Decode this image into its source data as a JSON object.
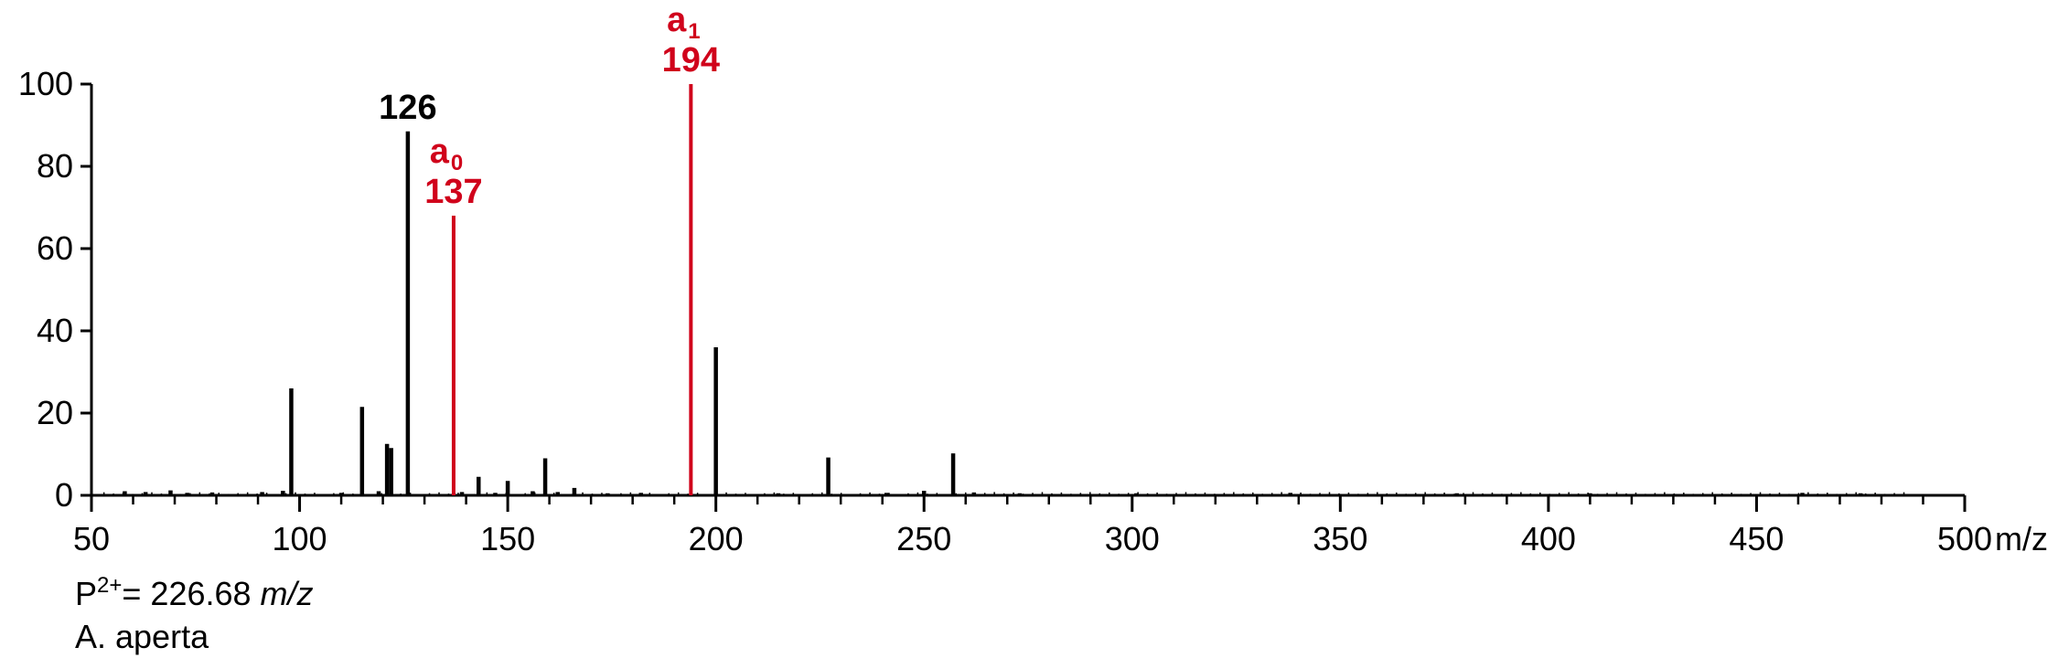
{
  "chart_data": {
    "type": "bar",
    "title": "",
    "xlabel": "m/z",
    "ylabel": "",
    "xlim": [
      50,
      500
    ],
    "ylim": [
      0,
      100
    ],
    "x_ticks": [
      50,
      100,
      150,
      200,
      250,
      300,
      350,
      400,
      450,
      500
    ],
    "y_ticks": [
      0,
      20,
      40,
      60,
      80,
      100
    ],
    "grid": false,
    "colors": {
      "default": "#000000",
      "highlight": "#d0021b"
    },
    "series": [
      {
        "values": [
          {
            "x": 58,
            "y": 1.0
          },
          {
            "x": 63,
            "y": 0.8
          },
          {
            "x": 69,
            "y": 1.2
          },
          {
            "x": 73,
            "y": 0.6
          },
          {
            "x": 79,
            "y": 0.7
          },
          {
            "x": 91,
            "y": 0.8
          },
          {
            "x": 96,
            "y": 1.1
          },
          {
            "x": 98,
            "y": 26
          },
          {
            "x": 110,
            "y": 0.6
          },
          {
            "x": 115,
            "y": 21.5
          },
          {
            "x": 119,
            "y": 1.0
          },
          {
            "x": 121,
            "y": 12.5
          },
          {
            "x": 122,
            "y": 11.5
          },
          {
            "x": 126,
            "y": 88.5,
            "label": "126"
          },
          {
            "x": 139,
            "y": 0.8
          },
          {
            "x": 143,
            "y": 4.5
          },
          {
            "x": 147,
            "y": 0.6
          },
          {
            "x": 150,
            "y": 3.5
          },
          {
            "x": 156,
            "y": 1.0
          },
          {
            "x": 159,
            "y": 9
          },
          {
            "x": 162,
            "y": 0.8
          },
          {
            "x": 166,
            "y": 1.8
          },
          {
            "x": 174,
            "y": 0.5
          },
          {
            "x": 182,
            "y": 0.6
          },
          {
            "x": 200,
            "y": 36
          },
          {
            "x": 215,
            "y": 0.5
          },
          {
            "x": 227,
            "y": 9.2
          },
          {
            "x": 241,
            "y": 0.6
          },
          {
            "x": 250,
            "y": 1.1
          },
          {
            "x": 257,
            "y": 10.2
          },
          {
            "x": 262,
            "y": 0.7
          },
          {
            "x": 273,
            "y": 0.5
          },
          {
            "x": 301,
            "y": 0.5
          },
          {
            "x": 338,
            "y": 0.6
          },
          {
            "x": 378,
            "y": 0.5
          },
          {
            "x": 410,
            "y": 0.5
          },
          {
            "x": 461,
            "y": 0.6
          },
          {
            "x": 475,
            "y": 0.5
          }
        ]
      },
      {
        "highlight": true,
        "values": [
          {
            "x": 137,
            "y": 68,
            "label": "137",
            "ion": "a",
            "ion_sub": "0"
          },
          {
            "x": 194,
            "y": 100,
            "label": "194",
            "ion": "a",
            "ion_sub": "1"
          }
        ]
      }
    ]
  },
  "footer": {
    "precursor_prefix": "P",
    "precursor_sup": "2+",
    "precursor_value": "= 226.68 ",
    "precursor_unit": "m/z",
    "species": "A. aperta"
  }
}
